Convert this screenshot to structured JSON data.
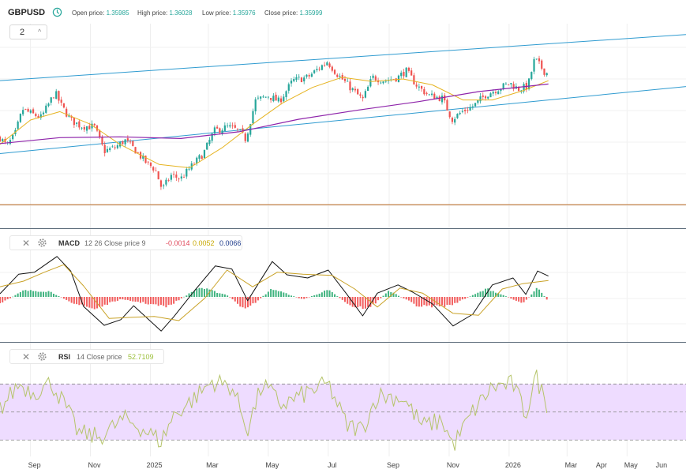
{
  "header": {
    "symbol": "GBPUSD",
    "open_label": "Open price:",
    "open_value": "1.35985",
    "high_label": "High price:",
    "high_value": "1.36028",
    "low_label": "Low price:",
    "low_value": "1.35976",
    "close_label": "Close price:",
    "close_value": "1.35999",
    "interval": "2"
  },
  "macd_legend": {
    "name": "MACD",
    "params": "12 26 Close price 9",
    "v1": "-0.0014",
    "v2": "0.0052",
    "v3": "0.0066",
    "v1_color": "#e0485a",
    "v2_color": "#c8a800",
    "v3_color": "#1d3a8a"
  },
  "rsi_legend": {
    "name": "RSI",
    "params": "14 Close price",
    "value": "52.7109",
    "value_color": "#9bbf3a"
  },
  "colors": {
    "up_candle": "#26a69a",
    "down_candle": "#ef5350",
    "channel": "#2f9bd0",
    "ma_fast": "#e6b422",
    "ma_slow": "#8e24aa",
    "macd_line": "#111111",
    "signal_line": "#c9a227",
    "rsi_line": "#b5c46a",
    "rsi_band": "#eedcff"
  },
  "chart_data": [
    {
      "type": "candlestick",
      "title": "GBPUSD",
      "x_start": "2024-08-01",
      "x_end": "2026-06-30",
      "x_ticks": [
        "Sep",
        "Nov",
        "2025",
        "Mar",
        "May",
        "Jul",
        "Sep",
        "Nov",
        "2026",
        "Mar",
        "Apr",
        "May",
        "Jun"
      ],
      "price_path": [
        [
          "2024-08-01",
          1.284
        ],
        [
          "2024-08-08",
          1.274
        ],
        [
          "2024-08-16",
          1.287
        ],
        [
          "2024-08-24",
          1.318
        ],
        [
          "2024-09-01",
          1.313
        ],
        [
          "2024-09-12",
          1.308
        ],
        [
          "2024-09-26",
          1.338
        ],
        [
          "2024-10-02",
          1.323
        ],
        [
          "2024-10-12",
          1.305
        ],
        [
          "2024-10-22",
          1.298
        ],
        [
          "2024-11-05",
          1.297
        ],
        [
          "2024-11-15",
          1.268
        ],
        [
          "2024-11-26",
          1.272
        ],
        [
          "2024-12-06",
          1.281
        ],
        [
          "2024-12-16",
          1.27
        ],
        [
          "2024-12-27",
          1.255
        ],
        [
          "2025-01-06",
          1.246
        ],
        [
          "2025-01-13",
          1.222
        ],
        [
          "2025-01-22",
          1.239
        ],
        [
          "2025-02-01",
          1.235
        ],
        [
          "2025-02-12",
          1.25
        ],
        [
          "2025-02-24",
          1.265
        ],
        [
          "2025-03-07",
          1.292
        ],
        [
          "2025-03-21",
          1.297
        ],
        [
          "2025-04-01",
          1.292
        ],
        [
          "2025-04-08",
          1.282
        ],
        [
          "2025-04-18",
          1.328
        ],
        [
          "2025-05-01",
          1.334
        ],
        [
          "2025-05-12",
          1.327
        ],
        [
          "2025-05-26",
          1.352
        ],
        [
          "2025-06-10",
          1.356
        ],
        [
          "2025-06-30",
          1.375
        ],
        [
          "2025-07-10",
          1.36
        ],
        [
          "2025-07-25",
          1.342
        ],
        [
          "2025-08-05",
          1.329
        ],
        [
          "2025-08-15",
          1.356
        ],
        [
          "2025-08-28",
          1.352
        ],
        [
          "2025-09-10",
          1.356
        ],
        [
          "2025-09-18",
          1.364
        ],
        [
          "2025-09-30",
          1.345
        ],
        [
          "2025-10-12",
          1.334
        ],
        [
          "2025-10-25",
          1.331
        ],
        [
          "2025-11-04",
          1.306
        ],
        [
          "2025-11-14",
          1.315
        ],
        [
          "2025-11-26",
          1.322
        ],
        [
          "2025-12-08",
          1.335
        ],
        [
          "2025-12-20",
          1.342
        ],
        [
          "2026-01-02",
          1.349
        ],
        [
          "2026-01-10",
          1.342
        ],
        [
          "2026-01-20",
          1.345
        ],
        [
          "2026-01-27",
          1.378
        ],
        [
          "2026-02-06",
          1.363
        ],
        [
          "2026-02-10",
          1.36
        ]
      ],
      "ma_fast": [
        [
          "2024-08-01",
          1.276
        ],
        [
          "2024-09-01",
          1.305
        ],
        [
          "2024-10-01",
          1.315
        ],
        [
          "2024-11-01",
          1.3
        ],
        [
          "2024-12-01",
          1.276
        ],
        [
          "2025-01-10",
          1.252
        ],
        [
          "2025-02-10",
          1.248
        ],
        [
          "2025-03-15",
          1.272
        ],
        [
          "2025-04-15",
          1.3
        ],
        [
          "2025-05-15",
          1.325
        ],
        [
          "2025-06-15",
          1.344
        ],
        [
          "2025-07-15",
          1.356
        ],
        [
          "2025-08-15",
          1.351
        ],
        [
          "2025-09-15",
          1.354
        ],
        [
          "2025-10-15",
          1.347
        ],
        [
          "2025-11-15",
          1.329
        ],
        [
          "2025-12-15",
          1.329
        ],
        [
          "2026-01-15",
          1.34
        ],
        [
          "2026-02-10",
          1.352
        ]
      ],
      "ma_slow": [
        [
          "2024-08-01",
          1.277
        ],
        [
          "2024-10-01",
          1.284
        ],
        [
          "2024-12-01",
          1.285
        ],
        [
          "2025-02-01",
          1.283
        ],
        [
          "2025-04-01",
          1.291
        ],
        [
          "2025-06-01",
          1.306
        ],
        [
          "2025-08-01",
          1.317
        ],
        [
          "2025-10-01",
          1.327
        ],
        [
          "2025-12-01",
          1.339
        ],
        [
          "2026-02-10",
          1.348
        ]
      ],
      "channel_upper": [
        [
          "2024-08-01",
          1.352
        ],
        [
          "2026-06-30",
          1.407
        ]
      ],
      "channel_lower": [
        [
          "2024-08-01",
          1.265
        ],
        [
          "2026-06-30",
          1.345
        ]
      ],
      "reference_line": 1.204,
      "ylim": [
        1.175,
        1.42
      ]
    },
    {
      "type": "line",
      "title": "MACD",
      "series": [
        {
          "name": "MACD",
          "values": [
            [
              "2024-08-01",
              0.001
            ],
            [
              "2024-08-20",
              0.0072
            ],
            [
              "2024-09-05",
              0.0078
            ],
            [
              "2024-09-28",
              0.0128
            ],
            [
              "2024-10-12",
              0.0082
            ],
            [
              "2024-10-25",
              -0.003
            ],
            [
              "2024-11-15",
              -0.009
            ],
            [
              "2024-12-02",
              -0.0072
            ],
            [
              "2024-12-15",
              -0.0028
            ],
            [
              "2025-01-12",
              -0.0108
            ],
            [
              "2025-01-25",
              -0.0062
            ],
            [
              "2025-02-15",
              0.002
            ],
            [
              "2025-03-08",
              0.0098
            ],
            [
              "2025-03-25",
              0.0088
            ],
            [
              "2025-04-10",
              -0.0012
            ],
            [
              "2025-05-05",
              0.0112
            ],
            [
              "2025-05-20",
              0.007
            ],
            [
              "2025-06-10",
              0.006
            ],
            [
              "2025-07-01",
              0.0085
            ],
            [
              "2025-07-20",
              0.0008
            ],
            [
              "2025-08-05",
              -0.006
            ],
            [
              "2025-08-20",
              0.0012
            ],
            [
              "2025-09-10",
              0.0038
            ],
            [
              "2025-09-25",
              0.0015
            ],
            [
              "2025-10-15",
              -0.0022
            ],
            [
              "2025-11-05",
              -0.0092
            ],
            [
              "2025-11-25",
              -0.0055
            ],
            [
              "2025-12-15",
              0.0038
            ],
            [
              "2026-01-05",
              0.006
            ],
            [
              "2026-01-18",
              0.0008
            ],
            [
              "2026-01-30",
              0.0082
            ],
            [
              "2026-02-10",
              0.0066
            ]
          ]
        },
        {
          "name": "Signal",
          "values": [
            [
              "2024-08-01",
              0.0032
            ],
            [
              "2024-08-25",
              0.005
            ],
            [
              "2024-09-15",
              0.0078
            ],
            [
              "2024-10-05",
              0.0102
            ],
            [
              "2024-10-25",
              0.0035
            ],
            [
              "2024-11-20",
              -0.0068
            ],
            [
              "2024-12-10",
              -0.0065
            ],
            [
              "2025-01-05",
              -0.0062
            ],
            [
              "2025-01-30",
              -0.0075
            ],
            [
              "2025-02-25",
              -0.0005
            ],
            [
              "2025-03-20",
              0.0085
            ],
            [
              "2025-04-15",
              0.0032
            ],
            [
              "2025-05-10",
              0.0078
            ],
            [
              "2025-06-05",
              0.0072
            ],
            [
              "2025-07-05",
              0.0068
            ],
            [
              "2025-07-28",
              0.0025
            ],
            [
              "2025-08-20",
              -0.0032
            ],
            [
              "2025-09-12",
              0.0028
            ],
            [
              "2025-10-05",
              0.0012
            ],
            [
              "2025-11-05",
              -0.0052
            ],
            [
              "2025-12-01",
              -0.0058
            ],
            [
              "2025-12-25",
              0.0025
            ],
            [
              "2026-01-15",
              0.0042
            ],
            [
              "2026-02-10",
              0.0052
            ]
          ]
        }
      ],
      "histogram": [
        [
          "2024-08-01",
          -0.0022
        ],
        [
          "2024-08-25",
          0.002
        ],
        [
          "2024-09-20",
          0.0018
        ],
        [
          "2024-10-15",
          -0.002
        ],
        [
          "2024-11-05",
          -0.0038
        ],
        [
          "2024-12-01",
          -0.0008
        ],
        [
          "2024-12-20",
          -0.0016
        ],
        [
          "2025-01-18",
          -0.0032
        ],
        [
          "2025-02-20",
          0.003
        ],
        [
          "2025-03-20",
          0.0006
        ],
        [
          "2025-04-08",
          -0.0042
        ],
        [
          "2025-05-05",
          0.0026
        ],
        [
          "2025-06-05",
          -0.0008
        ],
        [
          "2025-07-01",
          0.0022
        ],
        [
          "2025-07-25",
          -0.003
        ],
        [
          "2025-08-12",
          -0.0036
        ],
        [
          "2025-09-01",
          0.002
        ],
        [
          "2025-10-01",
          -0.003
        ],
        [
          "2025-11-01",
          -0.0028
        ],
        [
          "2025-12-10",
          0.0026
        ],
        [
          "2026-01-15",
          -0.002
        ],
        [
          "2026-01-30",
          0.0028
        ],
        [
          "2026-02-10",
          -0.0014
        ]
      ],
      "ylim": [
        -0.014,
        0.014
      ]
    },
    {
      "type": "line",
      "title": "RSI",
      "series": [
        {
          "name": "RSI",
          "values": [
            [
              "2024-08-01",
              52
            ],
            [
              "2024-08-20",
              70
            ],
            [
              "2024-09-05",
              64
            ],
            [
              "2024-09-22",
              71
            ],
            [
              "2024-10-05",
              56
            ],
            [
              "2024-10-20",
              35
            ],
            [
              "2024-11-10",
              32
            ],
            [
              "2024-12-05",
              45
            ],
            [
              "2024-12-20",
              40
            ],
            [
              "2025-01-12",
              29
            ],
            [
              "2025-01-25",
              48
            ],
            [
              "2025-02-15",
              60
            ],
            [
              "2025-03-05",
              72
            ],
            [
              "2025-03-25",
              68
            ],
            [
              "2025-04-10",
              38
            ],
            [
              "2025-04-25",
              70
            ],
            [
              "2025-05-15",
              55
            ],
            [
              "2025-06-10",
              64
            ],
            [
              "2025-07-01",
              70
            ],
            [
              "2025-07-20",
              40
            ],
            [
              "2025-08-05",
              38
            ],
            [
              "2025-08-20",
              62
            ],
            [
              "2025-09-15",
              60
            ],
            [
              "2025-10-05",
              40
            ],
            [
              "2025-10-25",
              44
            ],
            [
              "2025-11-05",
              26
            ],
            [
              "2025-11-25",
              50
            ],
            [
              "2025-12-15",
              68
            ],
            [
              "2026-01-05",
              70
            ],
            [
              "2026-01-18",
              48
            ],
            [
              "2026-01-28",
              76
            ],
            [
              "2026-02-10",
              52.7109
            ]
          ]
        }
      ],
      "bands": [
        30,
        50,
        70
      ],
      "ylim": [
        20,
        82
      ]
    }
  ]
}
